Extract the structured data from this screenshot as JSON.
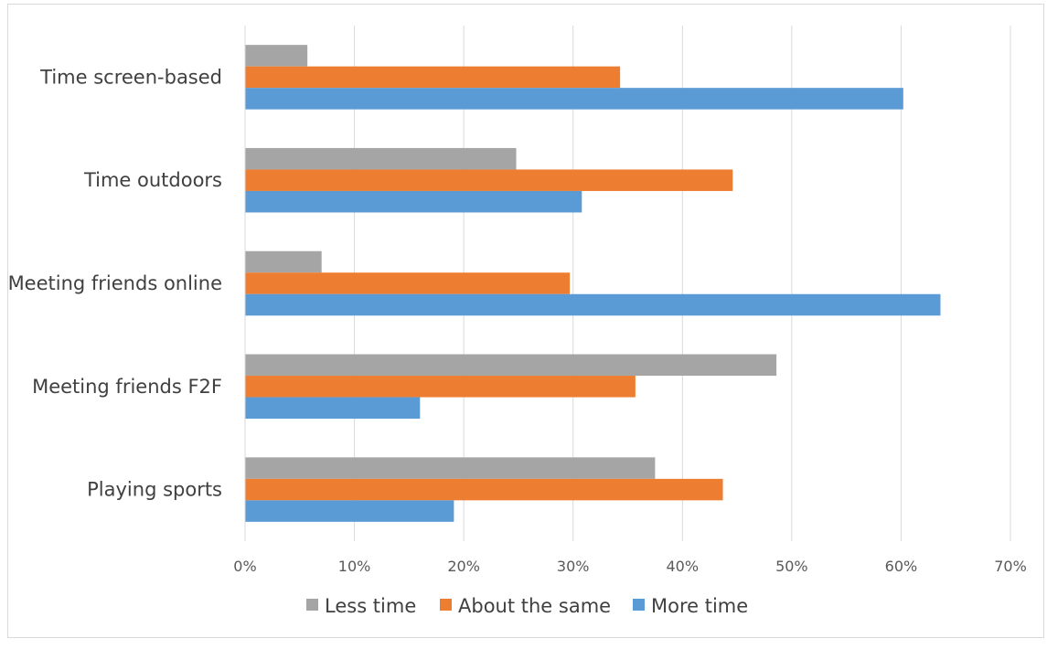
{
  "chart_data": {
    "type": "bar",
    "orientation": "horizontal",
    "title": "",
    "xlabel": "",
    "ylabel": "",
    "categories": [
      "Time screen-based",
      "Time outdoors",
      "Meeting friends online",
      "Meeting friends F2F",
      "Playing sports"
    ],
    "series": [
      {
        "name": "Less time",
        "color": "#a5a5a5",
        "values": [
          5.7,
          24.8,
          7.0,
          48.6,
          37.5
        ]
      },
      {
        "name": "About the same",
        "color": "#ed7d31",
        "values": [
          34.3,
          44.6,
          29.7,
          35.7,
          43.7
        ]
      },
      {
        "name": "More time",
        "color": "#5b9bd5",
        "values": [
          60.2,
          30.8,
          63.6,
          16.0,
          19.1
        ]
      }
    ],
    "xlim": [
      0,
      70
    ],
    "x_ticks": [
      "0%",
      "10%",
      "20%",
      "30%",
      "40%",
      "50%",
      "60%",
      "70%"
    ],
    "grid": true,
    "legend_position": "bottom"
  }
}
